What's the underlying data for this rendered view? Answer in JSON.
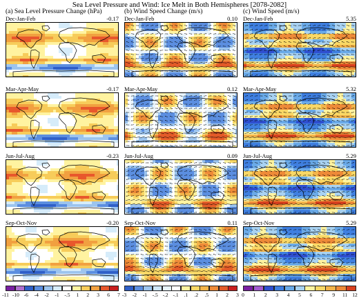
{
  "title": "Sea Level Pressure and Wind: Ice Melt in Both Hemispheres [2078-2082]",
  "columns": [
    {
      "title": "(a) Sea Level Pressure Change (hPa)",
      "kind": "slp_change",
      "seasons": [
        {
          "label": "Dec-Jan-Feb",
          "mean": "-0.17"
        },
        {
          "label": "Mar-Apr-May",
          "mean": "-0.17"
        },
        {
          "label": "Jun-Jul-Aug",
          "mean": "-0.23"
        },
        {
          "label": "Sep-Oct-Nov",
          "mean": "-0.20"
        }
      ]
    },
    {
      "title": "(b) Wind Speed Change (m/s)",
      "kind": "wind_change",
      "seasons": [
        {
          "label": "Dec-Jan-Feb",
          "mean": "0.10"
        },
        {
          "label": "Mar-Apr-May",
          "mean": "0.12"
        },
        {
          "label": "Jun-Jul-Aug",
          "mean": "0.09"
        },
        {
          "label": "Sep-Oct-Nov",
          "mean": "0.11"
        }
      ]
    },
    {
      "title": "(c) Wind Speed (m/s)",
      "kind": "wind_speed",
      "seasons": [
        {
          "label": "Dec-Jan-Feb",
          "mean": "5.35"
        },
        {
          "label": "Mar-Apr-May",
          "mean": "5.32"
        },
        {
          "label": "Jun-Jul-Aug",
          "mean": "5.29"
        },
        {
          "label": "Sep-Oct-Nov",
          "mean": "5.29"
        }
      ]
    }
  ],
  "colorbars": [
    {
      "ticks": [
        "-11",
        "-10",
        "-6",
        "-4",
        "-2",
        "-1",
        "-.5",
        "1",
        "2",
        "3",
        "6",
        "7"
      ],
      "colors": [
        "#7a1fa2",
        "#b06fd0",
        "#2f5fc8",
        "#5b8ee0",
        "#9cc4ee",
        "#d6ecfa",
        "#ffffff",
        "#fff3a0",
        "#f7cc5a",
        "#f1a040",
        "#e8572c",
        "#c81e1e"
      ]
    },
    {
      "ticks": [
        "-3",
        "-2",
        "-1",
        "-.5",
        "-.2",
        "-.1",
        ".1",
        ".2",
        ".5",
        "1",
        "2",
        "3"
      ],
      "colors": [
        "#2f5fc8",
        "#5b8ee0",
        "#9cc4ee",
        "#cfe6f8",
        "#e8f4fc",
        "#ffffff",
        "#fff3a0",
        "#f9d866",
        "#f3b44a",
        "#ee8a38",
        "#e35a28",
        "#c81e1e"
      ]
    },
    {
      "ticks": [
        "0",
        "1",
        "2",
        "3",
        "4",
        "5",
        "6",
        "7",
        "9",
        "11",
        "12"
      ],
      "colors": [
        "#7a1fa2",
        "#a25ad0",
        "#2f4fd0",
        "#3f7fe0",
        "#6aaae8",
        "#a8d2f2",
        "#fff3a0",
        "#f9d866",
        "#f3b44a",
        "#ee8a38",
        "#d8401e"
      ]
    }
  ],
  "colors": {
    "land_outline": "#000000",
    "vector": "#000000"
  }
}
